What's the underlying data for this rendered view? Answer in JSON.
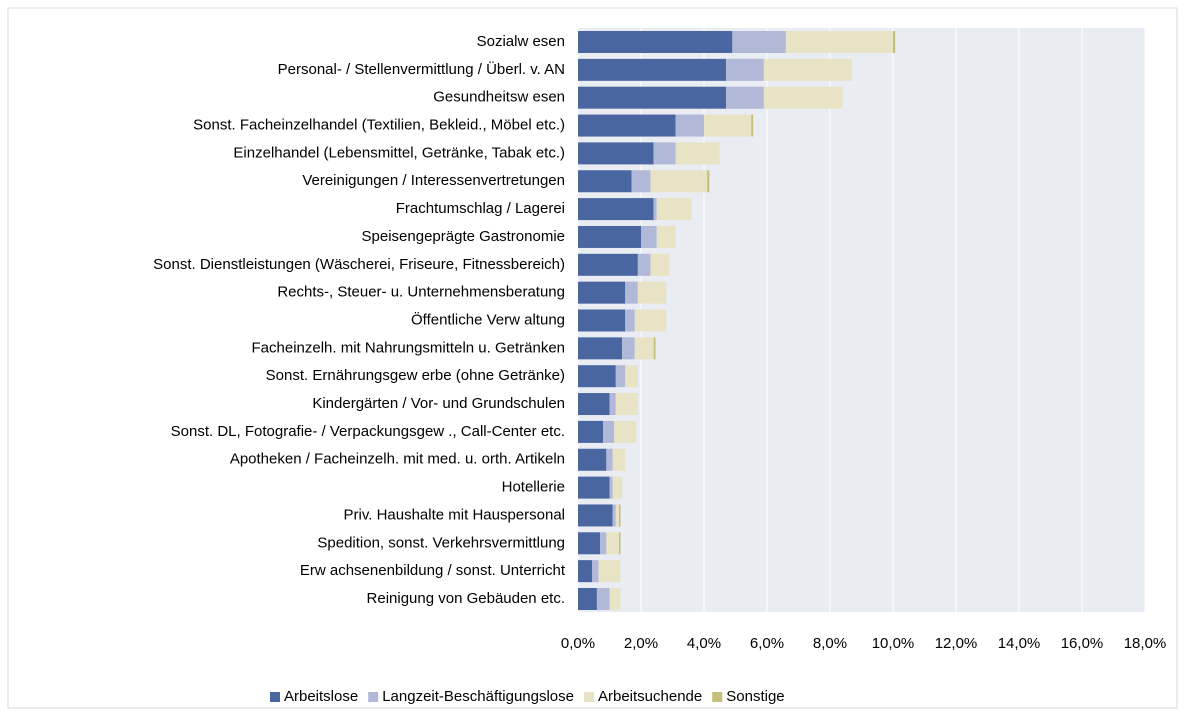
{
  "chart_data": {
    "type": "stacked_barh",
    "categories": [
      "Sozialw esen",
      "Personal- / Stellenvermittlung / Überl. v. AN",
      "Gesundheitsw esen",
      "Sonst. Facheinzelhandel (Textilien, Bekleid., Möbel etc.)",
      "Einzelhandel (Lebensmittel, Getränke, Tabak etc.) ",
      "Vereinigungen / Interessenvertretungen",
      "Frachtumschlag / Lagerei",
      "Speisengeprägte Gastronomie",
      "Sonst. Dienstleistungen (Wäscherei, Friseure, Fitnessbereich)",
      "Rechts-, Steuer- u. Unternehmensberatung",
      "Öffentliche Verw altung",
      "Facheinzelh. mit Nahrungsmitteln u. Getränken",
      "Sonst. Ernährungsgew erbe (ohne Getränke)",
      "Kindergärten / Vor- und Grundschulen",
      "Sonst. DL, Fotografie- / Verpackungsgew ., Call-Center etc.",
      "Apotheken / Facheinzelh. mit med. u. orth. Artikeln",
      "Hotellerie",
      "Priv. Haushalte mit Hauspersonal",
      "Spedition, sonst. Verkehrsvermittlung",
      "Erw achsenenbildung / sonst. Unterricht",
      "Reinigung von Gebäuden etc."
    ],
    "series": [
      {
        "name": "Arbeitslose",
        "color": "#4a66a0",
        "values": [
          4.9,
          4.7,
          4.7,
          3.1,
          2.4,
          1.7,
          2.4,
          2.0,
          1.9,
          1.5,
          1.5,
          1.4,
          1.2,
          1.0,
          0.8,
          0.9,
          1.0,
          1.1,
          0.7,
          0.45,
          0.6
        ]
      },
      {
        "name": "Langzeit-Beschäftigungslose",
        "color": "#b1b8d8",
        "values": [
          1.7,
          1.2,
          1.2,
          0.9,
          0.7,
          0.6,
          0.1,
          0.5,
          0.4,
          0.4,
          0.3,
          0.4,
          0.3,
          0.2,
          0.35,
          0.2,
          0.1,
          0.1,
          0.2,
          0.2,
          0.4
        ]
      },
      {
        "name": "Arbeitsuchende",
        "color": "#e7e3c4",
        "values": [
          3.4,
          2.8,
          2.5,
          1.5,
          1.4,
          1.8,
          1.1,
          0.6,
          0.6,
          0.9,
          1.0,
          0.6,
          0.4,
          0.7,
          0.7,
          0.4,
          0.3,
          0.1,
          0.4,
          0.7,
          0.35
        ]
      },
      {
        "name": "Sonstige",
        "color": "#c4bf7a",
        "values": [
          0.07,
          0,
          0,
          0.06,
          0,
          0.07,
          0,
          0,
          0,
          0,
          0,
          0.06,
          0,
          0,
          0,
          0,
          0,
          0.05,
          0.05,
          0,
          0
        ]
      }
    ],
    "xlim": [
      0,
      18
    ],
    "xticks": [
      {
        "value": 0,
        "label": "0,0%"
      },
      {
        "value": 2,
        "label": "2,0%"
      },
      {
        "value": 4,
        "label": "4,0%"
      },
      {
        "value": 6,
        "label": "6,0%"
      },
      {
        "value": 8,
        "label": "8,0%"
      },
      {
        "value": 10,
        "label": "10,0%"
      },
      {
        "value": 12,
        "label": "12,0%"
      },
      {
        "value": 14,
        "label": "14,0%"
      },
      {
        "value": 16,
        "label": "16,0%"
      },
      {
        "value": 18,
        "label": "18,0%"
      }
    ],
    "grid": true,
    "legend": "bottom"
  }
}
